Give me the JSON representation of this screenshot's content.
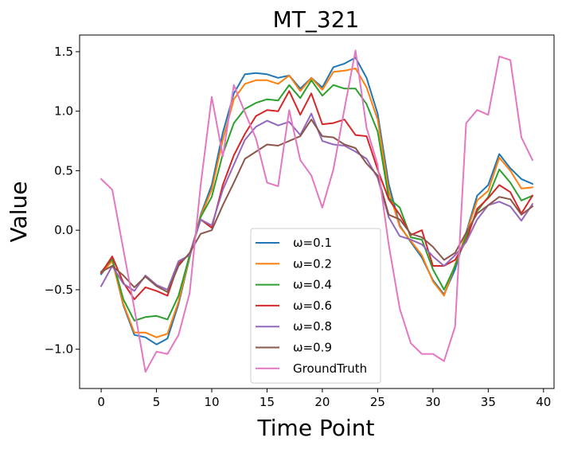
{
  "chart_data": {
    "type": "line",
    "title": "MT_321",
    "xlabel": "Time Point",
    "ylabel": "Value",
    "xlim": [
      -1.95,
      40.95
    ],
    "ylim": [
      -1.33,
      1.64
    ],
    "xticks": [
      0,
      5,
      10,
      15,
      20,
      25,
      30,
      35,
      40
    ],
    "yticks": [
      -1.0,
      -0.5,
      0.0,
      0.5,
      1.0,
      1.5
    ],
    "ytick_labels": [
      "−1.0",
      "−0.5",
      "0.0",
      "0.5",
      "1.0",
      "1.5"
    ],
    "grid": false,
    "legend_position": "lower-center",
    "x": [
      0,
      1,
      2,
      3,
      4,
      5,
      6,
      7,
      8,
      9,
      10,
      11,
      12,
      13,
      14,
      15,
      16,
      17,
      18,
      19,
      20,
      21,
      22,
      23,
      24,
      25,
      26,
      27,
      28,
      29,
      30,
      31,
      32,
      33,
      34,
      35,
      36,
      37,
      38,
      39
    ],
    "series": [
      {
        "name": "ω=0.1",
        "color": "#1f77b4",
        "values": [
          -0.37,
          -0.25,
          -0.63,
          -0.88,
          -0.9,
          -0.96,
          -0.91,
          -0.62,
          -0.23,
          0.13,
          0.38,
          0.82,
          1.15,
          1.31,
          1.32,
          1.31,
          1.28,
          1.3,
          1.19,
          1.28,
          1.2,
          1.37,
          1.4,
          1.45,
          1.28,
          0.98,
          0.39,
          0.04,
          -0.1,
          -0.23,
          -0.42,
          -0.54,
          -0.33,
          -0.02,
          0.29,
          0.38,
          0.64,
          0.52,
          0.43,
          0.39
        ]
      },
      {
        "name": "ω=0.2",
        "color": "#ff7f0e",
        "values": [
          -0.36,
          -0.26,
          -0.62,
          -0.86,
          -0.86,
          -0.9,
          -0.87,
          -0.6,
          -0.22,
          0.12,
          0.34,
          0.76,
          1.1,
          1.23,
          1.26,
          1.26,
          1.23,
          1.3,
          1.17,
          1.28,
          1.18,
          1.33,
          1.34,
          1.36,
          1.2,
          0.93,
          0.33,
          0.03,
          -0.09,
          -0.21,
          -0.43,
          -0.55,
          -0.29,
          -0.03,
          0.25,
          0.33,
          0.61,
          0.5,
          0.35,
          0.36
        ]
      },
      {
        "name": "ω=0.4",
        "color": "#2ca02c",
        "values": [
          -0.35,
          -0.24,
          -0.58,
          -0.76,
          -0.73,
          -0.72,
          -0.75,
          -0.55,
          -0.21,
          0.11,
          0.28,
          0.64,
          0.9,
          1.02,
          1.07,
          1.1,
          1.09,
          1.22,
          1.11,
          1.26,
          1.13,
          1.22,
          1.19,
          1.19,
          1.06,
          0.83,
          0.27,
          0.19,
          -0.06,
          -0.08,
          -0.33,
          -0.5,
          -0.3,
          -0.05,
          0.16,
          0.28,
          0.51,
          0.4,
          0.25,
          0.29
        ]
      },
      {
        "name": "ω=0.6",
        "color": "#d62728",
        "values": [
          -0.36,
          -0.22,
          -0.44,
          -0.58,
          -0.48,
          -0.51,
          -0.55,
          -0.28,
          -0.2,
          0.09,
          0.02,
          0.38,
          0.63,
          0.81,
          0.96,
          1.01,
          1.0,
          1.17,
          0.97,
          1.15,
          0.89,
          0.9,
          0.93,
          0.8,
          0.79,
          0.51,
          0.26,
          0.13,
          -0.04,
          0.0,
          -0.3,
          -0.3,
          -0.25,
          -0.09,
          0.18,
          0.27,
          0.38,
          0.32,
          0.14,
          0.29
        ]
      },
      {
        "name": "ω=0.8",
        "color": "#9467bd",
        "values": [
          -0.47,
          -0.3,
          -0.45,
          -0.51,
          -0.38,
          -0.46,
          -0.5,
          -0.26,
          -0.21,
          0.09,
          0.04,
          0.34,
          0.55,
          0.76,
          0.87,
          0.92,
          0.88,
          0.91,
          0.8,
          0.98,
          0.75,
          0.72,
          0.71,
          0.66,
          0.6,
          0.44,
          0.11,
          -0.05,
          -0.08,
          -0.12,
          -0.22,
          -0.3,
          -0.21,
          -0.1,
          0.09,
          0.21,
          0.24,
          0.2,
          0.08,
          0.22
        ]
      },
      {
        "name": "ω=0.9",
        "color": "#8c564b",
        "values": [
          -0.35,
          -0.3,
          -0.38,
          -0.48,
          -0.39,
          -0.47,
          -0.52,
          -0.3,
          -0.19,
          -0.03,
          0.0,
          0.21,
          0.4,
          0.6,
          0.66,
          0.72,
          0.71,
          0.75,
          0.79,
          0.93,
          0.79,
          0.78,
          0.72,
          0.69,
          0.56,
          0.46,
          0.13,
          0.09,
          -0.03,
          -0.06,
          -0.14,
          -0.25,
          -0.19,
          -0.02,
          0.14,
          0.21,
          0.28,
          0.26,
          0.13,
          0.2
        ]
      },
      {
        "name": "GroundTruth",
        "color": "#e377c2",
        "values": [
          0.43,
          0.34,
          -0.16,
          -0.66,
          -1.19,
          -1.02,
          -1.04,
          -0.88,
          -0.53,
          0.38,
          1.12,
          0.62,
          1.22,
          0.99,
          0.77,
          0.4,
          0.37,
          1.01,
          0.59,
          0.46,
          0.19,
          0.51,
          1.02,
          1.51,
          0.86,
          0.55,
          -0.12,
          -0.66,
          -0.95,
          -1.04,
          -1.04,
          -1.1,
          -0.81,
          0.9,
          1.01,
          0.97,
          1.46,
          1.43,
          0.78,
          0.59
        ]
      }
    ]
  }
}
